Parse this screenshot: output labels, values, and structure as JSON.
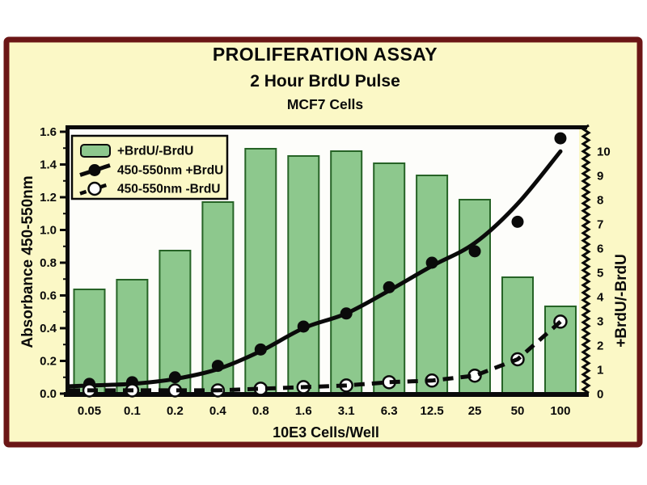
{
  "titles": {
    "title": "PROLIFERATION ASSAY",
    "subtitle": "2 Hour BrdU Pulse",
    "cell_line": "MCF7 Cells"
  },
  "colors": {
    "panel_bg": "#FBF8C6",
    "panel_border": "#6B1616",
    "plot_bg": "#FDFDFA",
    "bar_fill": "#8DC88D",
    "bar_stroke": "#266326",
    "line_color": "#0a0a0a",
    "text_color": "#0a0a0a"
  },
  "chart_data": {
    "type": "bar+line",
    "title": "PROLIFERATION ASSAY",
    "subtitle": "2 Hour BrdU Pulse",
    "annotation": "MCF7 Cells",
    "categories": [
      "0.05",
      "0.1",
      "0.2",
      "0.4",
      "0.8",
      "1.6",
      "3.1",
      "6.3",
      "12.5",
      "25",
      "50",
      "100"
    ],
    "xlabel": "10E3 Cells/Well",
    "left_axis": {
      "label": "Absorbance 450-550nm",
      "min": 0,
      "max": 1.6,
      "tick_labels": [
        "0.0",
        "0.2",
        "0.4",
        "0.6",
        "0.8",
        "1.0",
        "1.2",
        "1.4",
        "1.6"
      ],
      "tick_values": [
        0,
        0.2,
        0.4,
        0.6,
        0.8,
        1.0,
        1.2,
        1.4,
        1.6
      ],
      "minor_tick_values": [
        0.1,
        0.3,
        0.5,
        0.7,
        0.9,
        1.1,
        1.3,
        1.5
      ]
    },
    "right_axis": {
      "label": "+BrdU/-BrdU",
      "min": 0,
      "max": 10,
      "tick_labels": [
        "0",
        "1",
        "2",
        "3",
        "4",
        "5",
        "6",
        "7",
        "8",
        "9",
        "10"
      ],
      "tick_values": [
        0,
        1,
        2,
        3,
        4,
        5,
        6,
        7,
        8,
        9,
        10
      ]
    },
    "grid": false,
    "legend_position": "top-left",
    "series": [
      {
        "name": "+BrdU/-BrdU",
        "type": "bar",
        "axis": "right",
        "values": [
          4.3,
          4.7,
          5.9,
          7.9,
          10.1,
          9.8,
          10.0,
          9.5,
          9.0,
          8.0,
          4.8,
          3.6
        ]
      },
      {
        "name": "450-550nm +BrdU",
        "type": "line",
        "axis": "left",
        "style": "solid",
        "marker": "filled-circle",
        "values": [
          0.06,
          0.07,
          0.1,
          0.17,
          0.27,
          0.41,
          0.49,
          0.65,
          0.8,
          0.87,
          1.05,
          1.56
        ],
        "fit_curve": [
          0.05,
          0.06,
          0.09,
          0.15,
          0.26,
          0.4,
          0.49,
          0.63,
          0.78,
          0.92,
          1.16,
          1.48
        ]
      },
      {
        "name": "450-550nm -BrdU",
        "type": "line",
        "axis": "left",
        "style": "dashed",
        "marker": "open-circle",
        "values": [
          0.02,
          0.02,
          0.02,
          0.02,
          0.03,
          0.04,
          0.05,
          0.07,
          0.08,
          0.11,
          0.21,
          0.44
        ]
      }
    ]
  }
}
